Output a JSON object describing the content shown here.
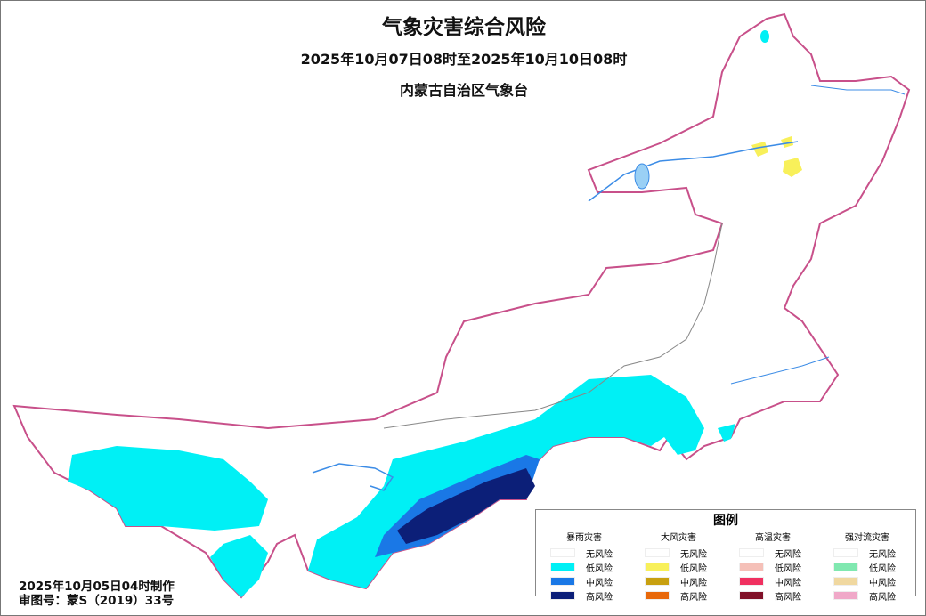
{
  "title": "气象灾害综合风险",
  "period": "2025年10月07日08时至2025年10月10日08时",
  "issuer": "内蒙古自治区气象台",
  "legend": {
    "title": "图例",
    "groups": [
      {
        "name": "暴雨灾害",
        "items": [
          {
            "label": "无风险",
            "color": "#ffffff"
          },
          {
            "label": "低风险",
            "color": "#00f0f5"
          },
          {
            "label": "中风险",
            "color": "#1a78e6"
          },
          {
            "label": "高风险",
            "color": "#0c1f78"
          }
        ]
      },
      {
        "name": "大风灾害",
        "items": [
          {
            "label": "无风险",
            "color": "#ffffff"
          },
          {
            "label": "低风险",
            "color": "#f8f05a"
          },
          {
            "label": "中风险",
            "color": "#c8a010"
          },
          {
            "label": "高风险",
            "color": "#e8680a"
          }
        ]
      },
      {
        "name": "高温灾害",
        "items": [
          {
            "label": "无风险",
            "color": "#ffffff"
          },
          {
            "label": "低风险",
            "color": "#f5c0b8"
          },
          {
            "label": "中风险",
            "color": "#f03060"
          },
          {
            "label": "高风险",
            "color": "#801028"
          }
        ]
      },
      {
        "name": "强对流灾害",
        "items": [
          {
            "label": "无风险",
            "color": "#ffffff"
          },
          {
            "label": "低风险",
            "color": "#80e8b0"
          },
          {
            "label": "中风险",
            "color": "#f0d8a0"
          },
          {
            "label": "高风险",
            "color": "#f0a8c8"
          }
        ]
      }
    ]
  },
  "footer": {
    "made": "2025年10月05日04时制作",
    "approval": "审图号：蒙S（2019）33号"
  },
  "colors": {
    "border": "#c8508a",
    "river": "#3c8ce6",
    "county": "#bbbbbb",
    "league": "#888888"
  }
}
